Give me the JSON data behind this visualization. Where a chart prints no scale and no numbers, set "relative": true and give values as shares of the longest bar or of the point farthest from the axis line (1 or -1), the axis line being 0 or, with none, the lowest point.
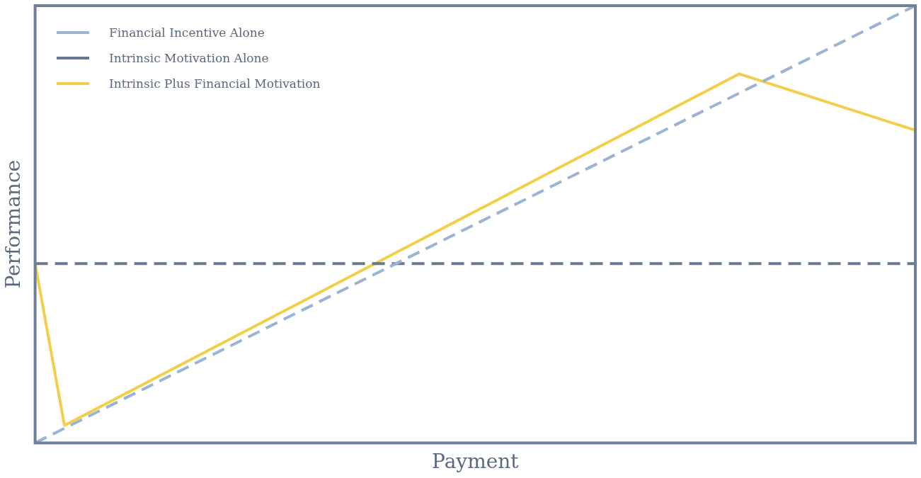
{
  "chart_data": {
    "type": "line",
    "relative": true,
    "xlabel": "Payment",
    "ylabel": "Performance",
    "legend": "top left",
    "categories": [
      null,
      null,
      null,
      null,
      null,
      null,
      null,
      null,
      null,
      null,
      null,
      null,
      null,
      null,
      null,
      null,
      null,
      null,
      null,
      null,
      null,
      null,
      null,
      null,
      null,
      null,
      null,
      null,
      null,
      null,
      null
    ],
    "series": [
      {
        "name": "Financial Incentive Alone",
        "color": "#9bb4d4",
        "line_style": "dashed",
        "values": [
          0,
          null,
          null,
          null,
          null,
          null,
          null,
          null,
          null,
          null,
          null,
          null,
          null,
          null,
          null,
          null,
          null,
          null,
          null,
          null,
          null,
          null,
          null,
          null,
          null,
          null,
          null,
          null,
          null,
          null,
          1
        ]
      },
      {
        "name": "Intrinsic Motivation Alone",
        "color": "#667893",
        "line_style": "dashed",
        "values": [
          0.41,
          null,
          null,
          null,
          null,
          null,
          null,
          null,
          null,
          null,
          null,
          null,
          null,
          null,
          null,
          null,
          null,
          null,
          null,
          null,
          null,
          null,
          null,
          null,
          null,
          null,
          null,
          null,
          null,
          null,
          0.41
        ]
      },
      {
        "name": "Intrinsic Plus Financial Motivation",
        "color": "#f2cf4a",
        "line_style": "solid",
        "values": [
          0.41,
          0.04,
          null,
          null,
          null,
          null,
          null,
          null,
          null,
          null,
          null,
          null,
          null,
          null,
          null,
          null,
          null,
          null,
          null,
          null,
          null,
          null,
          null,
          null,
          0.844,
          null,
          null,
          null,
          null,
          null,
          0.715
        ]
      }
    ]
  }
}
